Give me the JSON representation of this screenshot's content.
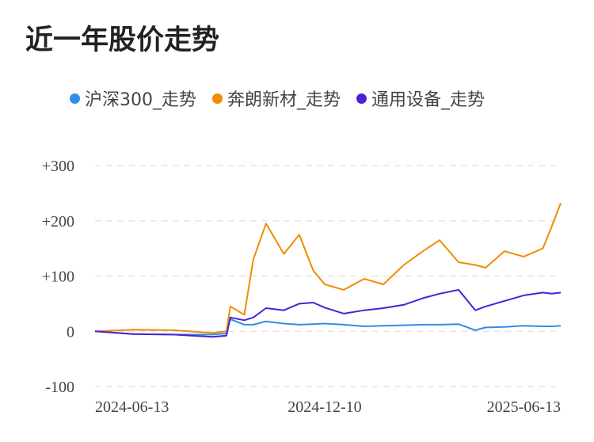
{
  "title": "近一年股价走势",
  "legend": [
    {
      "name": "沪深300_走势",
      "color": "#2f8ee8"
    },
    {
      "name": "奔朗新材_走势",
      "color": "#f08c00"
    },
    {
      "name": "通用设备_走势",
      "color": "#4a22d6"
    }
  ],
  "chart_data": {
    "type": "line",
    "title": "近一年股价走势",
    "xlabel": "",
    "ylabel": "",
    "ylim": [
      -100,
      300
    ],
    "y_ticks": [
      "+300",
      "+200",
      "+100",
      "0",
      "-100"
    ],
    "y_tick_values": [
      300,
      200,
      100,
      0,
      -100
    ],
    "x_ticks": [
      "2024-06-13",
      "2024-12-10",
      "2025-06-13"
    ],
    "grid": true,
    "legend_position": "top",
    "x": [
      "2024-06-13",
      "2024-07-13",
      "2024-08-13",
      "2024-09-13",
      "2024-09-24",
      "2024-09-27",
      "2024-10-08",
      "2024-10-15",
      "2024-10-25",
      "2024-11-08",
      "2024-11-20",
      "2024-12-01",
      "2024-12-10",
      "2024-12-25",
      "2025-01-10",
      "2025-01-25",
      "2025-02-10",
      "2025-02-25",
      "2025-03-10",
      "2025-03-25",
      "2025-04-07",
      "2025-04-15",
      "2025-04-30",
      "2025-05-15",
      "2025-05-30",
      "2025-06-06",
      "2025-06-13"
    ],
    "series": [
      {
        "name": "沪深300_走势",
        "color": "#2f8ee8",
        "values": [
          0,
          -5,
          -6,
          -6,
          -4,
          22,
          12,
          12,
          18,
          14,
          12,
          13,
          14,
          12,
          9,
          10,
          11,
          12,
          12,
          13,
          2,
          7,
          8,
          10,
          9,
          9,
          10
        ]
      },
      {
        "name": "奔朗新材_走势",
        "color": "#f08c00",
        "values": [
          0,
          3,
          2,
          -3,
          0,
          45,
          30,
          130,
          195,
          140,
          175,
          110,
          85,
          75,
          95,
          85,
          120,
          145,
          165,
          125,
          120,
          115,
          145,
          135,
          150,
          190,
          232
        ]
      },
      {
        "name": "通用设备_走势",
        "color": "#4a22d6",
        "values": [
          0,
          -5,
          -6,
          -10,
          -8,
          25,
          20,
          25,
          42,
          38,
          50,
          52,
          43,
          32,
          38,
          42,
          48,
          60,
          68,
          75,
          38,
          45,
          55,
          65,
          70,
          68,
          70
        ]
      }
    ]
  }
}
